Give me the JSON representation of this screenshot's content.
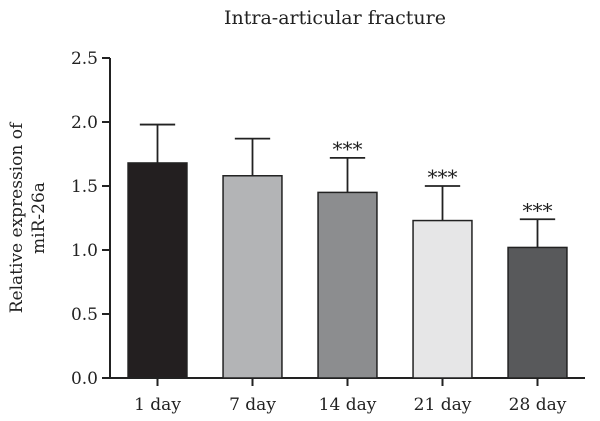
{
  "chart_data": {
    "type": "bar",
    "title": "Intra-articular fracture",
    "ylabel_lines": [
      "Relative expression of",
      "miR-26a"
    ],
    "xlabel": "",
    "categories": [
      "1 day",
      "7 day",
      "14 day",
      "21 day",
      "28 day"
    ],
    "values": [
      1.68,
      1.58,
      1.45,
      1.23,
      1.02
    ],
    "errors": [
      0.3,
      0.29,
      0.27,
      0.27,
      0.22
    ],
    "significance": [
      "",
      "",
      "***",
      "***",
      "***"
    ],
    "bar_colors": [
      "#231f20",
      "#b3b4b6",
      "#8c8d8f",
      "#e6e6e7",
      "#58595b"
    ],
    "ylim": [
      0,
      2.5
    ],
    "yticks": [
      "0.0",
      "0.5",
      "1.0",
      "1.5",
      "2.0",
      "2.5"
    ],
    "grid": false
  }
}
